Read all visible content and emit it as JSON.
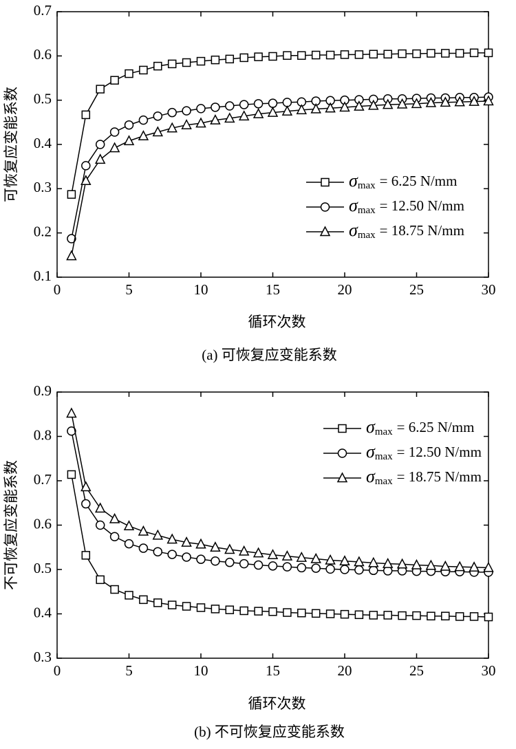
{
  "chart_data": [
    {
      "type": "line",
      "title": "(a) 可恢复应变能系数",
      "x_label": "循环次数",
      "y_label": "可恢复应变能系数",
      "legend_symbol": "σ",
      "legend_subscript": "max",
      "legend": "right",
      "xlim": [
        0,
        30
      ],
      "xticks": [
        0,
        5,
        10,
        15,
        20,
        25,
        30
      ],
      "ylim": [
        0.1,
        0.7
      ],
      "yticks": [
        0.1,
        0.2,
        0.3,
        0.4,
        0.5,
        0.6,
        0.7
      ],
      "x": [
        1,
        2,
        3,
        4,
        5,
        6,
        7,
        8,
        9,
        10,
        11,
        12,
        13,
        14,
        15,
        16,
        17,
        18,
        19,
        20,
        21,
        22,
        23,
        24,
        25,
        26,
        27,
        28,
        29,
        30
      ],
      "series": [
        {
          "name": "= 6.25 N/mm",
          "color": "#000000",
          "marker": "square",
          "values": [
            0.287,
            0.467,
            0.525,
            0.545,
            0.56,
            0.568,
            0.577,
            0.582,
            0.585,
            0.588,
            0.591,
            0.593,
            0.596,
            0.598,
            0.599,
            0.601,
            0.601,
            0.602,
            0.602,
            0.603,
            0.603,
            0.604,
            0.604,
            0.605,
            0.605,
            0.606,
            0.606,
            0.606,
            0.607,
            0.607
          ]
        },
        {
          "name": "= 12.50 N/mm",
          "color": "#000000",
          "marker": "circle",
          "values": [
            0.187,
            0.352,
            0.4,
            0.428,
            0.444,
            0.455,
            0.464,
            0.472,
            0.476,
            0.481,
            0.484,
            0.487,
            0.49,
            0.492,
            0.493,
            0.495,
            0.496,
            0.498,
            0.499,
            0.5,
            0.501,
            0.502,
            0.503,
            0.503,
            0.504,
            0.505,
            0.505,
            0.506,
            0.506,
            0.507
          ]
        },
        {
          "name": "= 18.75 N/mm",
          "color": "#000000",
          "marker": "triangle",
          "values": [
            0.148,
            0.318,
            0.366,
            0.392,
            0.408,
            0.419,
            0.428,
            0.437,
            0.444,
            0.448,
            0.455,
            0.459,
            0.464,
            0.469,
            0.472,
            0.475,
            0.478,
            0.48,
            0.482,
            0.484,
            0.486,
            0.488,
            0.49,
            0.491,
            0.492,
            0.494,
            0.495,
            0.496,
            0.497,
            0.498
          ]
        }
      ]
    },
    {
      "type": "line",
      "title": "(b) 不可恢复应变能系数",
      "x_label": "循环次数",
      "y_label": "不可恢复应变能系数",
      "legend_symbol": "σ",
      "legend_subscript": "max",
      "legend": "upper right",
      "xlim": [
        0,
        30
      ],
      "xticks": [
        0,
        5,
        10,
        15,
        20,
        25,
        30
      ],
      "ylim": [
        0.3,
        0.9
      ],
      "yticks": [
        0.3,
        0.4,
        0.5,
        0.6,
        0.7,
        0.8,
        0.9
      ],
      "x": [
        1,
        2,
        3,
        4,
        5,
        6,
        7,
        8,
        9,
        10,
        11,
        12,
        13,
        14,
        15,
        16,
        17,
        18,
        19,
        20,
        21,
        22,
        23,
        24,
        25,
        26,
        27,
        28,
        29,
        30
      ],
      "series": [
        {
          "name": "= 6.25 N/mm",
          "color": "#000000",
          "marker": "square",
          "values": [
            0.714,
            0.532,
            0.477,
            0.455,
            0.442,
            0.432,
            0.425,
            0.42,
            0.417,
            0.414,
            0.411,
            0.409,
            0.407,
            0.406,
            0.405,
            0.403,
            0.402,
            0.401,
            0.4,
            0.399,
            0.398,
            0.397,
            0.397,
            0.396,
            0.396,
            0.395,
            0.395,
            0.394,
            0.394,
            0.393
          ]
        },
        {
          "name": "= 12.50 N/mm",
          "color": "#000000",
          "marker": "circle",
          "values": [
            0.812,
            0.648,
            0.6,
            0.574,
            0.558,
            0.548,
            0.54,
            0.534,
            0.528,
            0.523,
            0.519,
            0.516,
            0.513,
            0.51,
            0.508,
            0.506,
            0.504,
            0.503,
            0.501,
            0.5,
            0.499,
            0.498,
            0.497,
            0.497,
            0.496,
            0.496,
            0.495,
            0.495,
            0.494,
            0.494
          ]
        },
        {
          "name": "= 18.75 N/mm",
          "color": "#000000",
          "marker": "triangle",
          "values": [
            0.852,
            0.686,
            0.638,
            0.614,
            0.598,
            0.586,
            0.577,
            0.568,
            0.561,
            0.557,
            0.55,
            0.545,
            0.541,
            0.537,
            0.533,
            0.53,
            0.527,
            0.524,
            0.521,
            0.519,
            0.517,
            0.515,
            0.513,
            0.512,
            0.51,
            0.509,
            0.507,
            0.506,
            0.505,
            0.504
          ]
        }
      ]
    }
  ]
}
